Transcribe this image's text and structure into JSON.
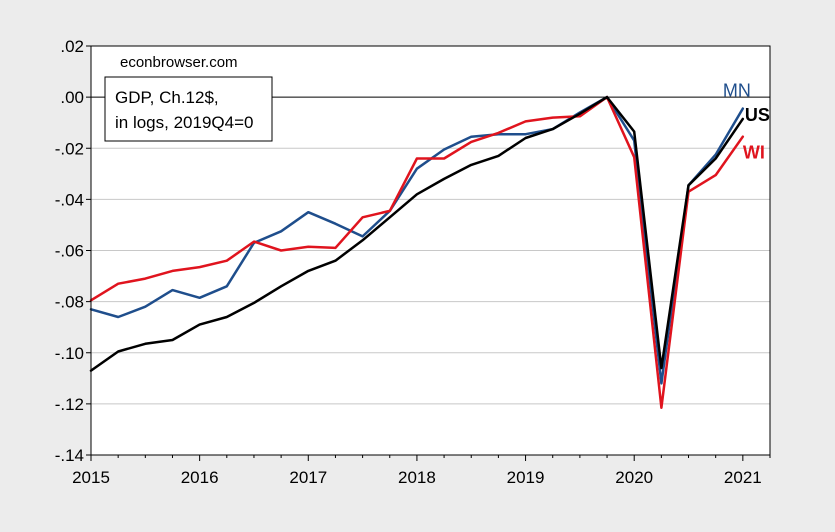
{
  "chart_data": {
    "type": "line",
    "annotation": "econbrowser.com",
    "legend_box": {
      "lines": [
        "GDP, Ch.12$,",
        "in logs, 2019Q4=0"
      ],
      "placement": "top-left"
    },
    "x_tick_labels": [
      "2015",
      "2016",
      "2017",
      "2018",
      "2019",
      "2020",
      "2021"
    ],
    "y_tick_labels": [
      ".02",
      ".00",
      "-.02",
      "-.04",
      "-.06",
      "-.08",
      "-.10",
      "-.12",
      "-.14"
    ],
    "ylim": [
      -0.14,
      0.02
    ],
    "xlim": [
      2015.0,
      2021.25
    ],
    "grid": "horizontal",
    "x": [
      "2015Q1",
      "2015Q2",
      "2015Q3",
      "2015Q4",
      "2016Q1",
      "2016Q2",
      "2016Q3",
      "2016Q4",
      "2017Q1",
      "2017Q2",
      "2017Q3",
      "2017Q4",
      "2018Q1",
      "2018Q2",
      "2018Q3",
      "2018Q4",
      "2019Q1",
      "2019Q2",
      "2019Q3",
      "2019Q4",
      "2020Q1",
      "2020Q2",
      "2020Q3",
      "2020Q4",
      "2021Q1"
    ],
    "series": [
      {
        "name": "MN",
        "color": "#1f4e8c",
        "label_bold": false,
        "values": [
          -0.083,
          -0.086,
          -0.082,
          -0.0755,
          -0.0785,
          -0.074,
          -0.057,
          -0.0525,
          -0.045,
          -0.0495,
          -0.0545,
          -0.0445,
          -0.028,
          -0.0205,
          -0.0155,
          -0.0145,
          -0.0145,
          -0.0125,
          -0.006,
          0.0,
          -0.017,
          -0.112,
          -0.0345,
          -0.0225,
          -0.0045
        ]
      },
      {
        "name": "US",
        "color": "#000000",
        "label_bold": true,
        "values": [
          -0.107,
          -0.0995,
          -0.0965,
          -0.095,
          -0.089,
          -0.086,
          -0.0805,
          -0.074,
          -0.068,
          -0.064,
          -0.056,
          -0.047,
          -0.038,
          -0.032,
          -0.0265,
          -0.023,
          -0.016,
          -0.0125,
          -0.0065,
          0.0,
          -0.0135,
          -0.106,
          -0.0345,
          -0.024,
          -0.0085
        ]
      },
      {
        "name": "WI",
        "color": "#e0141e",
        "label_bold": true,
        "values": [
          -0.0795,
          -0.073,
          -0.071,
          -0.068,
          -0.0665,
          -0.064,
          -0.0565,
          -0.06,
          -0.0585,
          -0.059,
          -0.047,
          -0.0445,
          -0.024,
          -0.024,
          -0.0175,
          -0.014,
          -0.0095,
          -0.008,
          -0.0075,
          0.0,
          -0.0235,
          -0.1215,
          -0.037,
          -0.0305,
          -0.0155
        ]
      }
    ]
  }
}
